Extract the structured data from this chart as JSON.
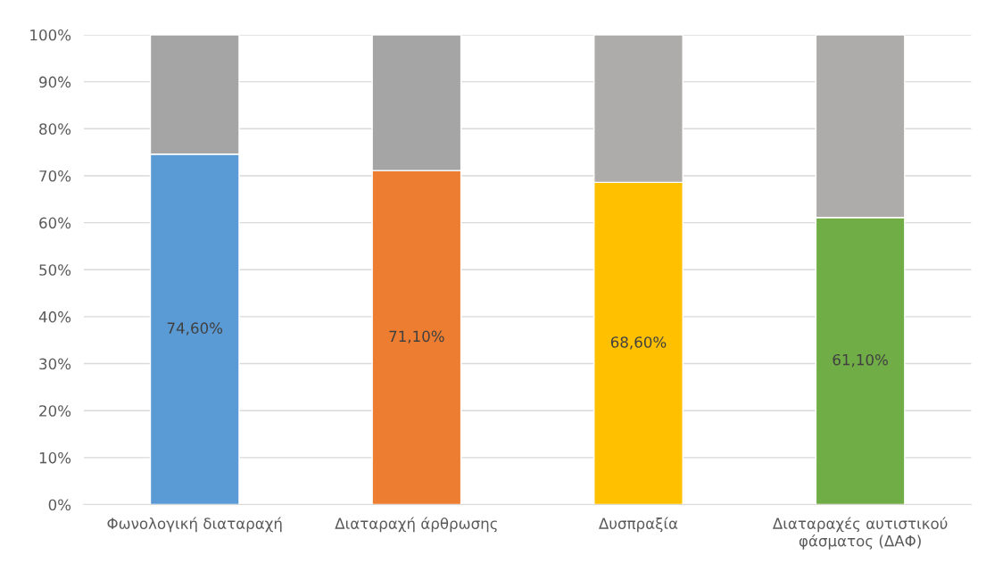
{
  "chart_data": {
    "type": "bar",
    "stacked": true,
    "categories": [
      "Φωνολογική διαταραχή",
      "Διαταραχή άρθρωσης",
      "Δυσπραξία",
      "Διαταραχές αυτιστικού\nφάσματος (ΔΑΦ)"
    ],
    "series": [
      {
        "colors": [
          "#5b9bd5",
          "#ed7d31",
          "#ffc000",
          "#70ad47"
        ],
        "values": [
          74.6,
          71.1,
          68.6,
          61.1
        ],
        "value_labels": [
          "74,60%",
          "71,10%",
          "68,60%",
          "61,10%"
        ]
      },
      {
        "colors": [
          "#a5a5a5",
          "#a5a5a5",
          "#aeabab",
          "#aeabab"
        ],
        "values": [
          25.4,
          28.9,
          31.4,
          38.9
        ]
      }
    ],
    "ylim": [
      0,
      100
    ],
    "yticks": [
      {
        "value": 0,
        "label": "0%"
      },
      {
        "value": 10,
        "label": "10%"
      },
      {
        "value": 20,
        "label": "20%"
      },
      {
        "value": 30,
        "label": "30%"
      },
      {
        "value": 40,
        "label": "40%"
      },
      {
        "value": 50,
        "label": "50%"
      },
      {
        "value": 60,
        "label": "60%"
      },
      {
        "value": 70,
        "label": "70%"
      },
      {
        "value": 80,
        "label": "80%"
      },
      {
        "value": 90,
        "label": "90%"
      },
      {
        "value": 100,
        "label": "100%"
      }
    ],
    "grid": "y",
    "legend": false
  }
}
